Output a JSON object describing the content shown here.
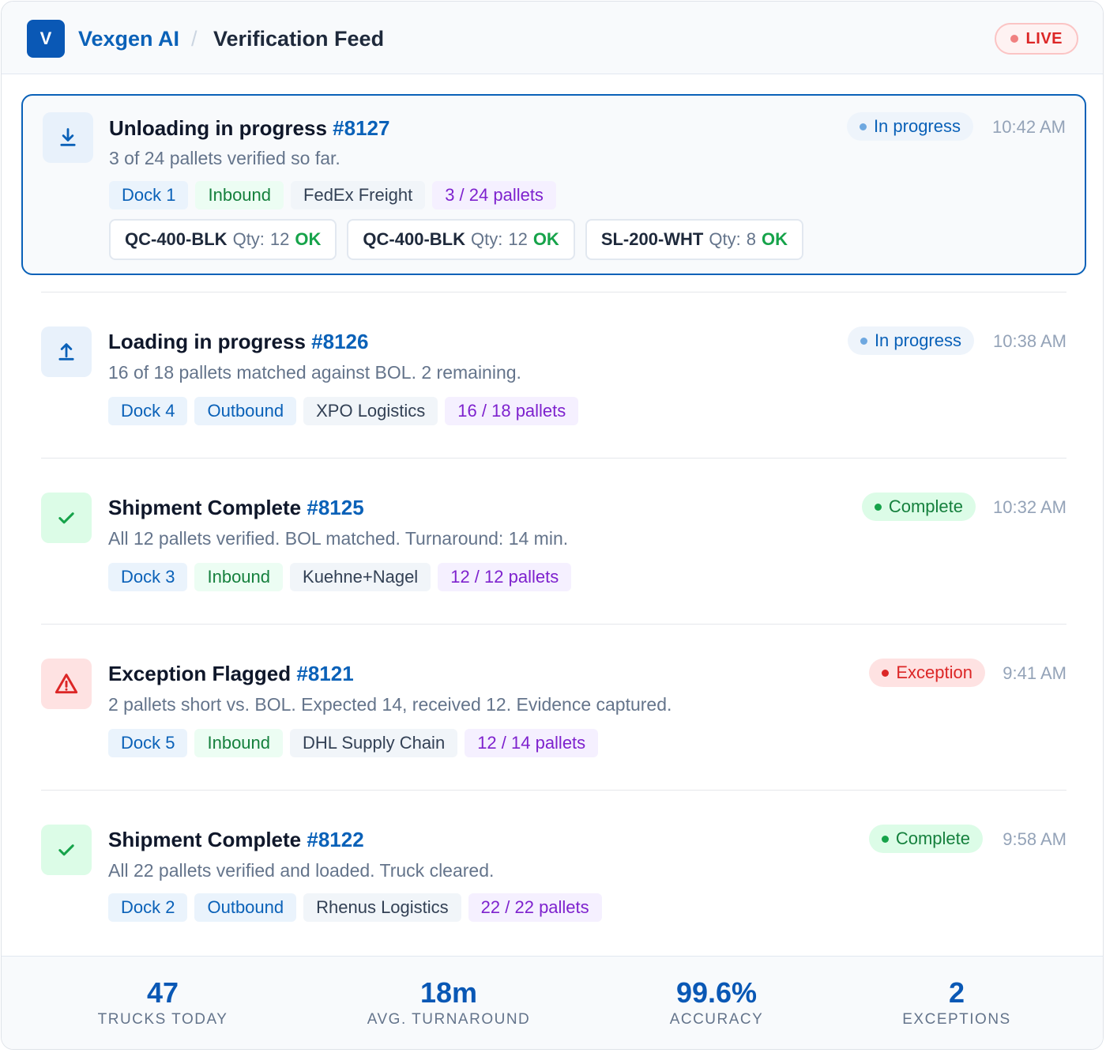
{
  "header": {
    "logo_letter": "V",
    "brand": "Vexgen AI",
    "separator": "/",
    "page_title": "Verification Feed",
    "live_label": "LIVE"
  },
  "colors": {
    "brand": "#0a61b8",
    "complete": "#16a34a",
    "exception": "#dc2626",
    "pallets": "#7e22ce"
  },
  "feed": [
    {
      "icon": "download-icon",
      "title": "Unloading in progress",
      "ref": "#8127",
      "desc": "3 of 24 pallets verified so far.",
      "status": "In progress",
      "time": "10:42 AM",
      "tags": {
        "dock": "Dock 1",
        "direction": "Inbound",
        "carrier": "FedEx Freight",
        "pallets": "3 / 24 pallets"
      },
      "skus": [
        {
          "code": "QC-400-BLK",
          "qty_label": "Qty:",
          "qty": "12",
          "result": "OK"
        },
        {
          "code": "QC-400-BLK",
          "qty_label": "Qty:",
          "qty": "12",
          "result": "OK"
        },
        {
          "code": "SL-200-WHT",
          "qty_label": "Qty:",
          "qty": "8",
          "result": "OK"
        }
      ]
    },
    {
      "icon": "upload-icon",
      "title": "Loading in progress",
      "ref": "#8126",
      "desc": "16 of 18 pallets matched against BOL. 2 remaining.",
      "status": "In progress",
      "time": "10:38 AM",
      "tags": {
        "dock": "Dock 4",
        "direction": "Outbound",
        "carrier": "XPO Logistics",
        "pallets": "16 / 18 pallets"
      }
    },
    {
      "icon": "check-icon",
      "title": "Shipment Complete",
      "ref": "#8125",
      "desc": "All 12 pallets verified. BOL matched. Turnaround: 14 min.",
      "status": "Complete",
      "time": "10:32 AM",
      "tags": {
        "dock": "Dock 3",
        "direction": "Inbound",
        "carrier": "Kuehne+Nagel",
        "pallets": "12 / 12 pallets"
      }
    },
    {
      "icon": "warning-icon",
      "title": "Exception Flagged",
      "ref": "#8121",
      "desc": "2 pallets short vs. BOL. Expected 14, received 12. Evidence captured.",
      "status": "Exception",
      "time": "9:41 AM",
      "tags": {
        "dock": "Dock 5",
        "direction": "Inbound",
        "carrier": "DHL Supply Chain",
        "pallets": "12 / 14 pallets"
      }
    },
    {
      "icon": "check-icon",
      "title": "Shipment Complete",
      "ref": "#8122",
      "desc": "All 22 pallets verified and loaded. Truck cleared.",
      "status": "Complete",
      "time": "9:58 AM",
      "tags": {
        "dock": "Dock 2",
        "direction": "Outbound",
        "carrier": "Rhenus Logistics",
        "pallets": "22 / 22 pallets"
      }
    }
  ],
  "stats": [
    {
      "value": "47",
      "label": "TRUCKS TODAY"
    },
    {
      "value": "18m",
      "label": "AVG. TURNAROUND"
    },
    {
      "value": "99.6%",
      "label": "ACCURACY"
    },
    {
      "value": "2",
      "label": "EXCEPTIONS"
    }
  ]
}
